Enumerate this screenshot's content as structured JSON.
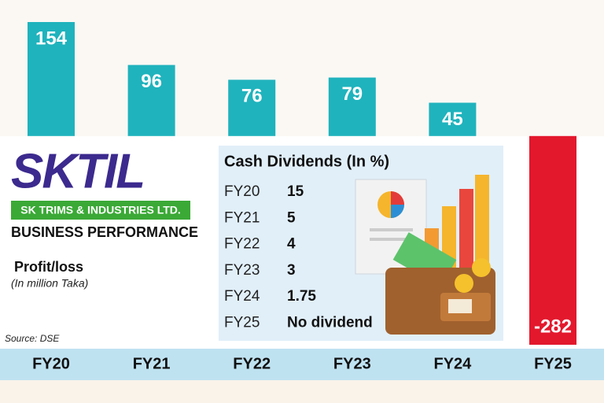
{
  "chart_data": {
    "type": "bar",
    "categories": [
      "FY20",
      "FY21",
      "FY22",
      "FY23",
      "FY24",
      "FY25"
    ],
    "values": [
      154,
      96,
      76,
      79,
      45,
      -282
    ],
    "colors": [
      "#1fb3bd",
      "#1fb3bd",
      "#1fb3bd",
      "#1fb3bd",
      "#1fb3bd",
      "#e3182d"
    ]
  },
  "logo": "SKTIL",
  "company": "SK TRIMS & INDUSTRIES LTD.",
  "subtitle": "BUSINESS PERFORMANCE",
  "measure": "Profit/loss",
  "unit": "(In million Taka)",
  "source": "Source: DSE",
  "dividends": {
    "title": "Cash Dividends (In %)",
    "rows": [
      [
        "FY20",
        15
      ],
      [
        "FY21",
        5
      ],
      [
        "FY22",
        4
      ],
      [
        "FY23",
        3
      ],
      [
        "FY24",
        1.75
      ],
      [
        "FY25",
        "No dividend"
      ]
    ]
  }
}
